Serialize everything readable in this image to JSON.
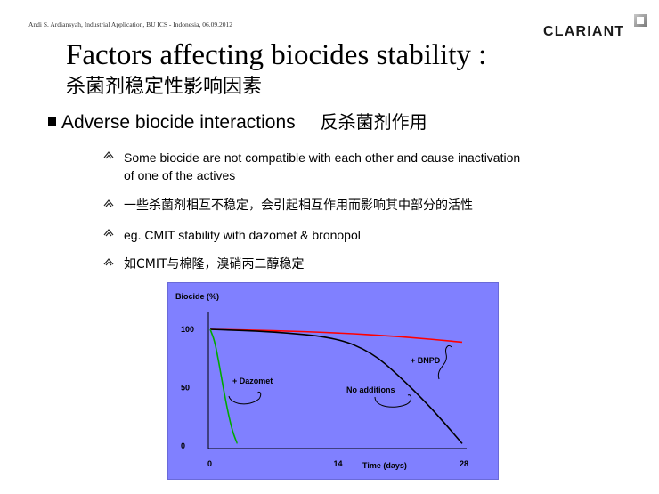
{
  "header": {
    "note": "Andi S. Ardiansyah, Industrial Application, BU ICS - Indonesia, 06.09.2012",
    "logo_text": "CLARIANT"
  },
  "slide": {
    "title": "Factors affecting biocides stability :",
    "subtitle": "杀菌剂稳定性影响因素",
    "bullet": {
      "en": "Adverse biocide interactions",
      "cn": "反杀菌剂作用"
    },
    "items": [
      {
        "text": "Some biocide are not compatible with each other and cause inactivation of one of the actives"
      },
      {
        "text": "一些杀菌剂相互不稳定，会引起相互作用而影响其中部分的活性"
      },
      {
        "text": "eg. CMIT stability with dazomet & bronopol"
      },
      {
        "text": "如CMIT与棉隆，溴硝丙二醇稳定"
      }
    ]
  },
  "chart_data": {
    "type": "line",
    "ylabel": "Biocide (%)",
    "xlabel": "Time (days)",
    "xlim": [
      0,
      28
    ],
    "ylim": [
      0,
      100
    ],
    "x_ticks": [
      "0",
      "14",
      "28"
    ],
    "y_ticks": [
      "100",
      "50",
      "0"
    ],
    "series": [
      {
        "name": "+ BNPD",
        "color": "#ff0000",
        "x": [
          0,
          7,
          14,
          21,
          28
        ],
        "y": [
          100,
          99,
          97,
          94,
          89
        ]
      },
      {
        "name": "No additions",
        "color": "#000000",
        "x": [
          0,
          7,
          14,
          18,
          21,
          24,
          26,
          28
        ],
        "y": [
          100,
          98,
          93,
          80,
          60,
          37,
          20,
          2
        ]
      },
      {
        "name": "+ Dazomet",
        "color": "#00aa00",
        "x": [
          0,
          0.5,
          1,
          1.5,
          2,
          2.5,
          3
        ],
        "y": [
          100,
          90,
          70,
          48,
          28,
          12,
          2
        ]
      }
    ]
  }
}
